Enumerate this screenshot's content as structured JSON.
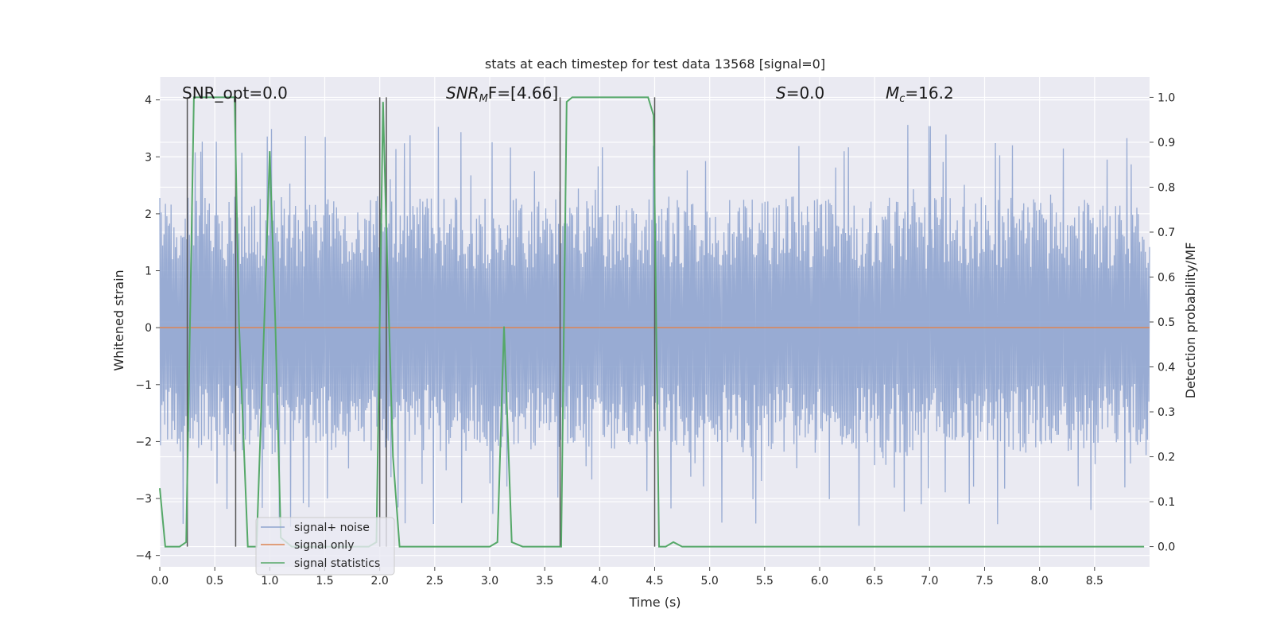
{
  "chart_data": {
    "type": "line",
    "title": "stats at each timestep for test data 13568 [signal=0]",
    "xlabel": "Time (s)",
    "ylabel": "Whitened strain",
    "ylabel_right": "Detection probability/MF",
    "xlim": [
      0,
      9.0
    ],
    "ylim_left": [
      -4.2,
      4.4
    ],
    "ylim_right": [
      -0.045,
      1.045
    ],
    "xticks": [
      "0.0",
      "0.5",
      "1.0",
      "1.5",
      "2.0",
      "2.5",
      "3.0",
      "3.5",
      "4.0",
      "4.5",
      "5.0",
      "5.5",
      "6.0",
      "6.5",
      "7.0",
      "7.5",
      "8.0",
      "8.5"
    ],
    "yticks_left": [
      "-4",
      "-3",
      "-2",
      "-1",
      "0",
      "1",
      "2",
      "3",
      "4"
    ],
    "yticks_right": [
      "0.0",
      "0.1",
      "0.2",
      "0.3",
      "0.4",
      "0.5",
      "0.6",
      "0.7",
      "0.8",
      "0.9",
      "1.0"
    ],
    "grid": true,
    "annotations": {
      "snr_opt": "SNR_opt=0.0",
      "snr_mf_sym": "SNR",
      "snr_mf_sub": "M",
      "snr_mf_rest": "F=[4.66]",
      "s_sym": "S",
      "s_rest": "=0.0",
      "mc_sym": "M",
      "mc_sub": "c",
      "mc_rest": "=16.2"
    },
    "legend": {
      "position": "lower-left",
      "entries": [
        "signal+ noise",
        "signal only",
        "signal statistics"
      ]
    },
    "colors": {
      "signal_noise": "#8fa4cf",
      "signal_only": "#dd8452",
      "statistics": "#55a868",
      "markers": "#555555",
      "background": "#eaeaf2"
    },
    "series": [
      {
        "name": "signal+ noise",
        "axis": "left",
        "description": "whitened noisy strain oscillating roughly within -3.5 to 3.5",
        "envelope": {
          "typical_max": 2.3,
          "peak_max": 3.6,
          "typical_min": -2.2,
          "peak_min": -3.5
        }
      },
      {
        "name": "signal only",
        "axis": "left",
        "x": [
          0,
          9.0
        ],
        "y": [
          0,
          0
        ]
      },
      {
        "name": "signal statistics",
        "axis": "right",
        "x": [
          0.0,
          0.05,
          0.1,
          0.18,
          0.24,
          0.31,
          0.34,
          0.4,
          0.55,
          0.68,
          0.72,
          0.8,
          0.88,
          0.95,
          1.0,
          1.05,
          1.1,
          1.2,
          1.3,
          1.4,
          1.5,
          1.6,
          1.7,
          1.8,
          1.9,
          1.97,
          2.03,
          2.06,
          2.12,
          2.18,
          2.3,
          2.5,
          2.7,
          2.9,
          3.0,
          3.07,
          3.13,
          3.2,
          3.3,
          3.5,
          3.6,
          3.65,
          3.7,
          3.75,
          3.8,
          4.0,
          4.2,
          4.44,
          4.49,
          4.54,
          4.6,
          4.67,
          4.75,
          5.0,
          5.2,
          5.3,
          5.5,
          6.0,
          7.0,
          8.0,
          8.95
        ],
        "y": [
          0.13,
          0.0,
          0.0,
          0.0,
          0.01,
          1.0,
          1.0,
          1.0,
          1.0,
          1.0,
          0.5,
          0.0,
          0.0,
          0.5,
          0.88,
          0.5,
          0.02,
          0.0,
          0.0,
          0.0,
          0.0,
          0.0,
          0.0,
          0.0,
          0.0,
          0.01,
          0.99,
          0.7,
          0.2,
          0.0,
          0.0,
          0.0,
          0.0,
          0.0,
          0.0,
          0.01,
          0.49,
          0.01,
          0.0,
          0.0,
          0.0,
          0.0,
          0.99,
          1.0,
          1.0,
          1.0,
          1.0,
          1.0,
          0.96,
          0.0,
          0.0,
          0.01,
          0.0,
          0.0,
          0.0,
          0.0,
          0.0,
          0.0,
          0.0,
          0.0,
          0.0
        ]
      }
    ],
    "marker_lines_x": [
      0.25,
      0.69,
      2.0,
      2.06,
      3.64,
      4.5
    ],
    "marker_lines_range_right": [
      0.0,
      1.0
    ]
  }
}
